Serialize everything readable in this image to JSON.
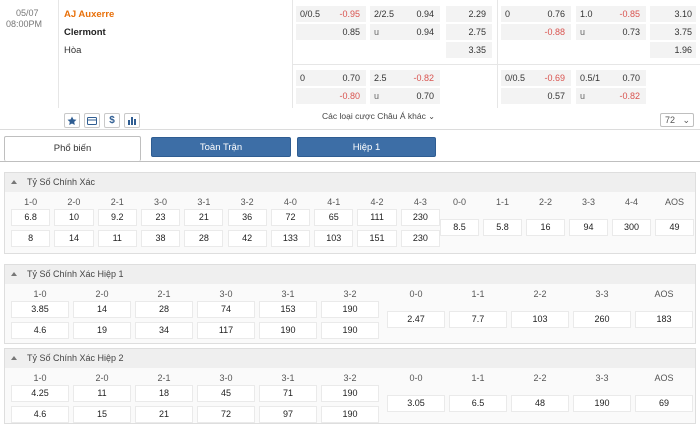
{
  "match": {
    "date": "05/07",
    "time": "08:00PM",
    "home": "AJ Auxerre",
    "away": "Clermont",
    "draw": "Hòa"
  },
  "odds": {
    "r1c1": {
      "h": "0/0.5",
      "v": "-0.95"
    },
    "r1c2": {
      "v": "0.85"
    },
    "r1c3": {
      "h": "2/2.5",
      "v": "0.94"
    },
    "r1c4": {
      "h": "u",
      "v": "0.94"
    },
    "r1c5": [
      "2.29",
      "2.75",
      "3.35"
    ],
    "r1c6": {
      "h": "0",
      "v": "0.76"
    },
    "r1c7": {
      "v": "-0.88"
    },
    "r1c8": {
      "h": "1.0",
      "v": "-0.85"
    },
    "r1c9": {
      "h": "u",
      "v": "0.73"
    },
    "r1c10": [
      "3.10",
      "3.75",
      "1.96"
    ],
    "r2c1": {
      "h": "0",
      "v": "0.70"
    },
    "r2c2": {
      "v": "-0.80"
    },
    "r2c3": {
      "h": "2.5",
      "v": "-0.82"
    },
    "r2c4": {
      "h": "u",
      "v": "0.70"
    },
    "r2c6": {
      "h": "0/0.5",
      "v": "-0.69"
    },
    "r2c7": {
      "v": "0.57"
    },
    "r2c8": {
      "h": "0.5/1",
      "v": "0.70"
    },
    "r2c9": {
      "h": "u",
      "v": "-0.82"
    }
  },
  "actions": {
    "icons": [
      "star-icon",
      "card-icon",
      "dollar-icon",
      "chart-icon"
    ],
    "more_label": "Các loại cược Châu Á khác",
    "page": "72"
  },
  "tabs": [
    "Phổ biến",
    "Toàn Trận",
    "Hiệp 1"
  ],
  "sections": [
    {
      "title": "Tỷ Số Chính Xác",
      "labels": [
        "1-0",
        "2-0",
        "2-1",
        "3-0",
        "3-1",
        "3-2",
        "4-0",
        "4-1",
        "4-2",
        "4-3",
        "0-0",
        "1-1",
        "2-2",
        "3-3",
        "4-4",
        "AOS"
      ],
      "row1": [
        "6.8",
        "10",
        "9.2",
        "23",
        "21",
        "36",
        "72",
        "65",
        "111",
        "230"
      ],
      "row2": [
        "8",
        "14",
        "11",
        "38",
        "28",
        "42",
        "133",
        "103",
        "151",
        "230"
      ],
      "mid": [
        "8.5",
        "5.8",
        "16",
        "94",
        "300",
        "49"
      ]
    },
    {
      "title": "Tỷ Số Chính Xác Hiệp 1",
      "labels": [
        "1-0",
        "2-0",
        "2-1",
        "3-0",
        "3-1",
        "3-2",
        "0-0",
        "1-1",
        "2-2",
        "3-3",
        "AOS"
      ],
      "row1": [
        "3.85",
        "14",
        "28",
        "74",
        "153",
        "190"
      ],
      "row2": [
        "4.6",
        "19",
        "34",
        "117",
        "190",
        "190"
      ],
      "mid": [
        "2.47",
        "7.7",
        "103",
        "260",
        "183"
      ]
    },
    {
      "title": "Tỷ Số Chính Xác Hiệp 2",
      "labels": [
        "1-0",
        "2-0",
        "2-1",
        "3-0",
        "3-1",
        "3-2",
        "0-0",
        "1-1",
        "2-2",
        "3-3",
        "AOS"
      ],
      "row1": [
        "4.25",
        "11",
        "18",
        "45",
        "71",
        "190"
      ],
      "row2": [
        "4.6",
        "15",
        "21",
        "72",
        "97",
        "190"
      ],
      "mid": [
        "3.05",
        "6.5",
        "48",
        "190",
        "69"
      ]
    }
  ]
}
